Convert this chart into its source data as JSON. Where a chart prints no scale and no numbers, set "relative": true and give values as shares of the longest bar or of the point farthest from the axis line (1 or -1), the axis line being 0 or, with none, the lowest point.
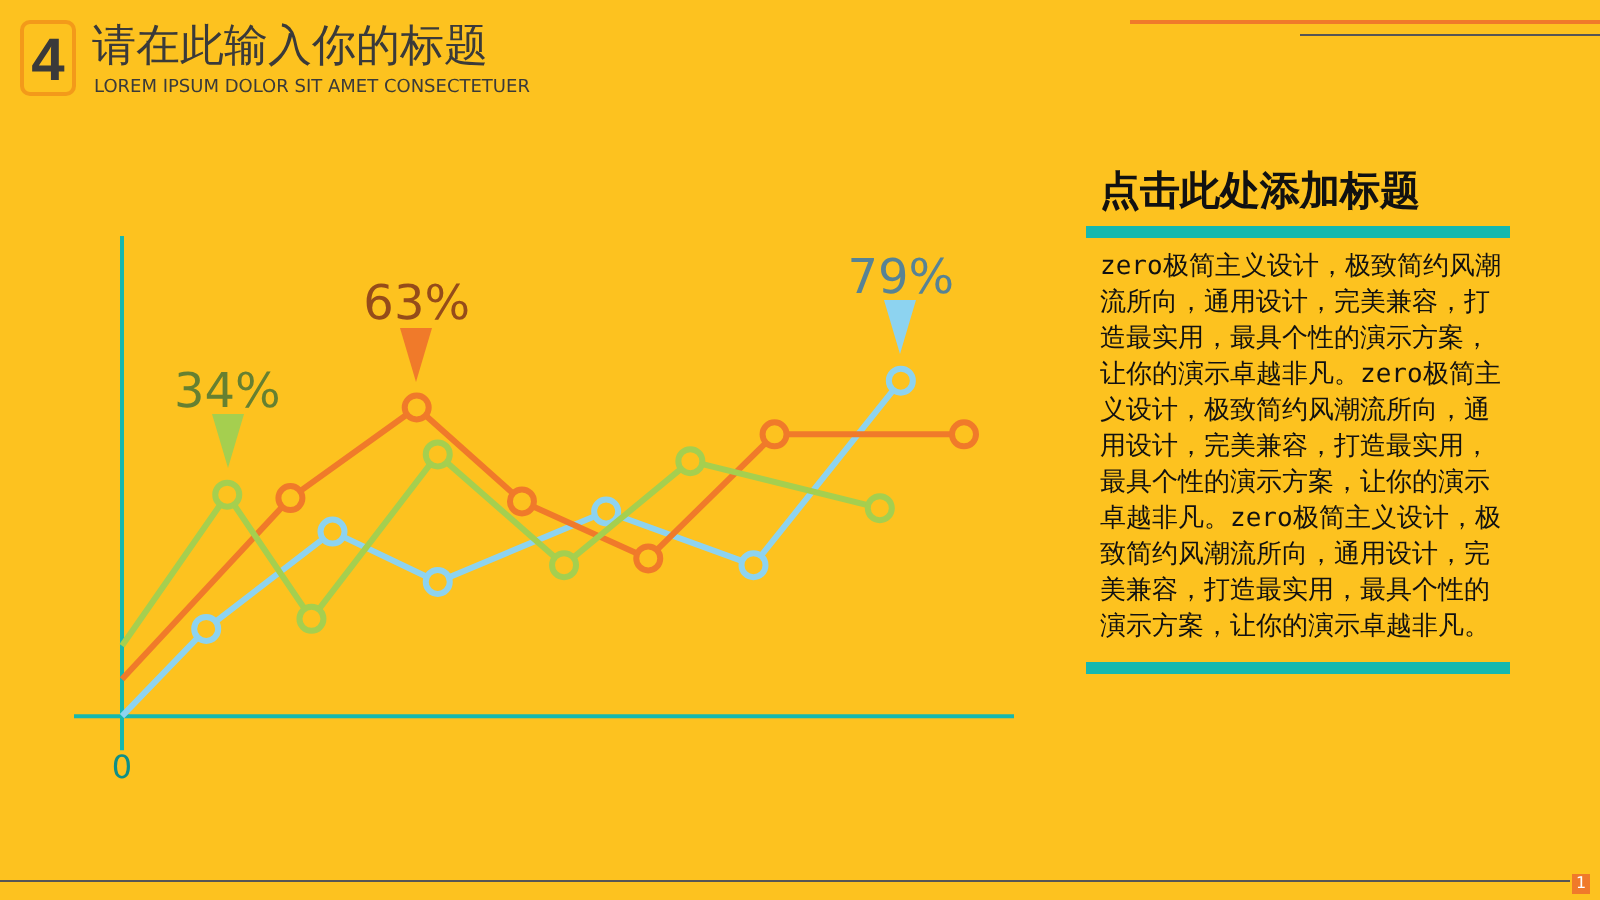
{
  "chart_data": [
    {
      "type": "line",
      "title": "请在此输入你的标题",
      "subtitle": "LOREM IPSUM DOLOR SIT AMET CONSECTETUER",
      "relative": true,
      "marker": "circle",
      "legend": false,
      "categories": [
        null,
        null,
        null,
        null,
        null,
        null,
        null,
        null,
        null,
        null,
        null,
        null,
        null,
        null,
        null,
        null,
        null,
        null,
        null,
        null,
        null,
        null,
        null,
        null,
        null,
        null,
        null,
        null,
        null,
        null,
        null,
        null,
        null,
        null,
        null,
        null,
        null,
        null,
        null,
        null,
        null
      ],
      "series": [
        {
          "color": "#a5cf4f",
          "values": [
            0.21,
            null,
            null,
            null,
            null,
            0.66,
            null,
            null,
            null,
            0.29,
            null,
            null,
            null,
            null,
            null,
            0.78,
            null,
            null,
            null,
            null,
            null,
            0.45,
            null,
            null,
            null,
            null,
            null,
            0.76,
            null,
            null,
            null,
            null,
            null,
            null,
            null,
            null,
            0.62,
            null,
            null,
            null,
            null
          ]
        },
        {
          "color": "#f07a2a",
          "values": [
            0.11,
            null,
            null,
            null,
            null,
            null,
            null,
            null,
            0.65,
            null,
            null,
            null,
            null,
            null,
            0.92,
            null,
            null,
            null,
            null,
            0.64,
            null,
            null,
            null,
            null,
            null,
            0.47,
            null,
            null,
            null,
            null,
            null,
            0.84,
            null,
            null,
            null,
            null,
            null,
            null,
            null,
            null,
            0.84
          ]
        },
        {
          "color": "#8dd3f0",
          "values": [
            0,
            null,
            null,
            null,
            0.26,
            null,
            null,
            null,
            null,
            null,
            0.55,
            null,
            null,
            null,
            null,
            0.4,
            null,
            null,
            null,
            null,
            null,
            null,
            null,
            0.61,
            null,
            null,
            null,
            null,
            null,
            null,
            0.45,
            null,
            null,
            null,
            null,
            null,
            null,
            1,
            null,
            null,
            null
          ]
        }
      ],
      "annotations": [
        "4",
        "1",
        "0",
        {
          "text": "34%",
          "y": 0.66
        },
        {
          "text": "63%",
          "y": 0.92
        },
        {
          "text": "79%",
          "y": 1
        }
      ]
    },
    {
      "type": "other",
      "title": "点击此处添加标题",
      "annotations": [
        "zero极简主义设计，极致简约风潮流所向，通用设计，完美兼容，打造最实用，最具个性的演示方案，让你的演示卓越非凡。zero极简主义设计，极致简约风潮流所向，通用设计，完美兼容，打造最实用，最具个性的演示方案，让你的演示卓越非凡。zero极简主义设计，极致简约风潮流所向，通用设计，完美兼容，打造最实用，最具个性的演示方案，让你的演示卓越非凡。"
      ]
    }
  ]
}
